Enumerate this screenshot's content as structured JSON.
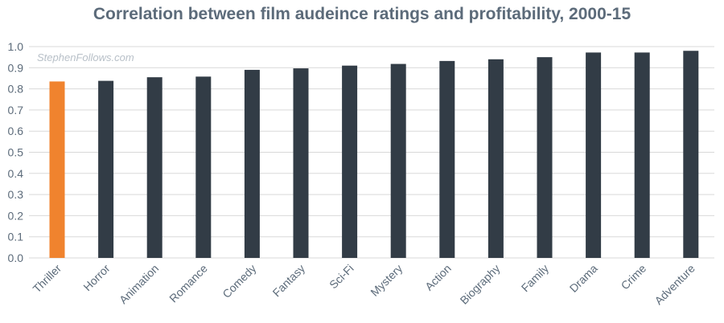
{
  "chart_data": {
    "type": "bar",
    "title": "Correlation between film audeince ratings and profitability, 2000-15",
    "watermark": "StephenFollows.com",
    "xlabel": "",
    "ylabel": "",
    "ylim": [
      0,
      1.0
    ],
    "yticks": [
      "0.0",
      "0.1",
      "0.2",
      "0.3",
      "0.4",
      "0.5",
      "0.6",
      "0.7",
      "0.8",
      "0.9",
      "1.0"
    ],
    "grid": true,
    "categories": [
      "Thriller",
      "Horror",
      "Animation",
      "Romance",
      "Comedy",
      "Fantasy",
      "Sci-Fi",
      "Mystery",
      "Action",
      "Biography",
      "Family",
      "Drama",
      "Crime",
      "Adventure"
    ],
    "values": [
      0.835,
      0.838,
      0.855,
      0.858,
      0.89,
      0.897,
      0.91,
      0.918,
      0.932,
      0.94,
      0.95,
      0.972,
      0.972,
      0.98
    ],
    "colors": {
      "highlight": "#f0832e",
      "bar": "#323c46",
      "grid": "#d9d9d9",
      "text": "#5c6b7a"
    },
    "highlight_index": 0
  }
}
